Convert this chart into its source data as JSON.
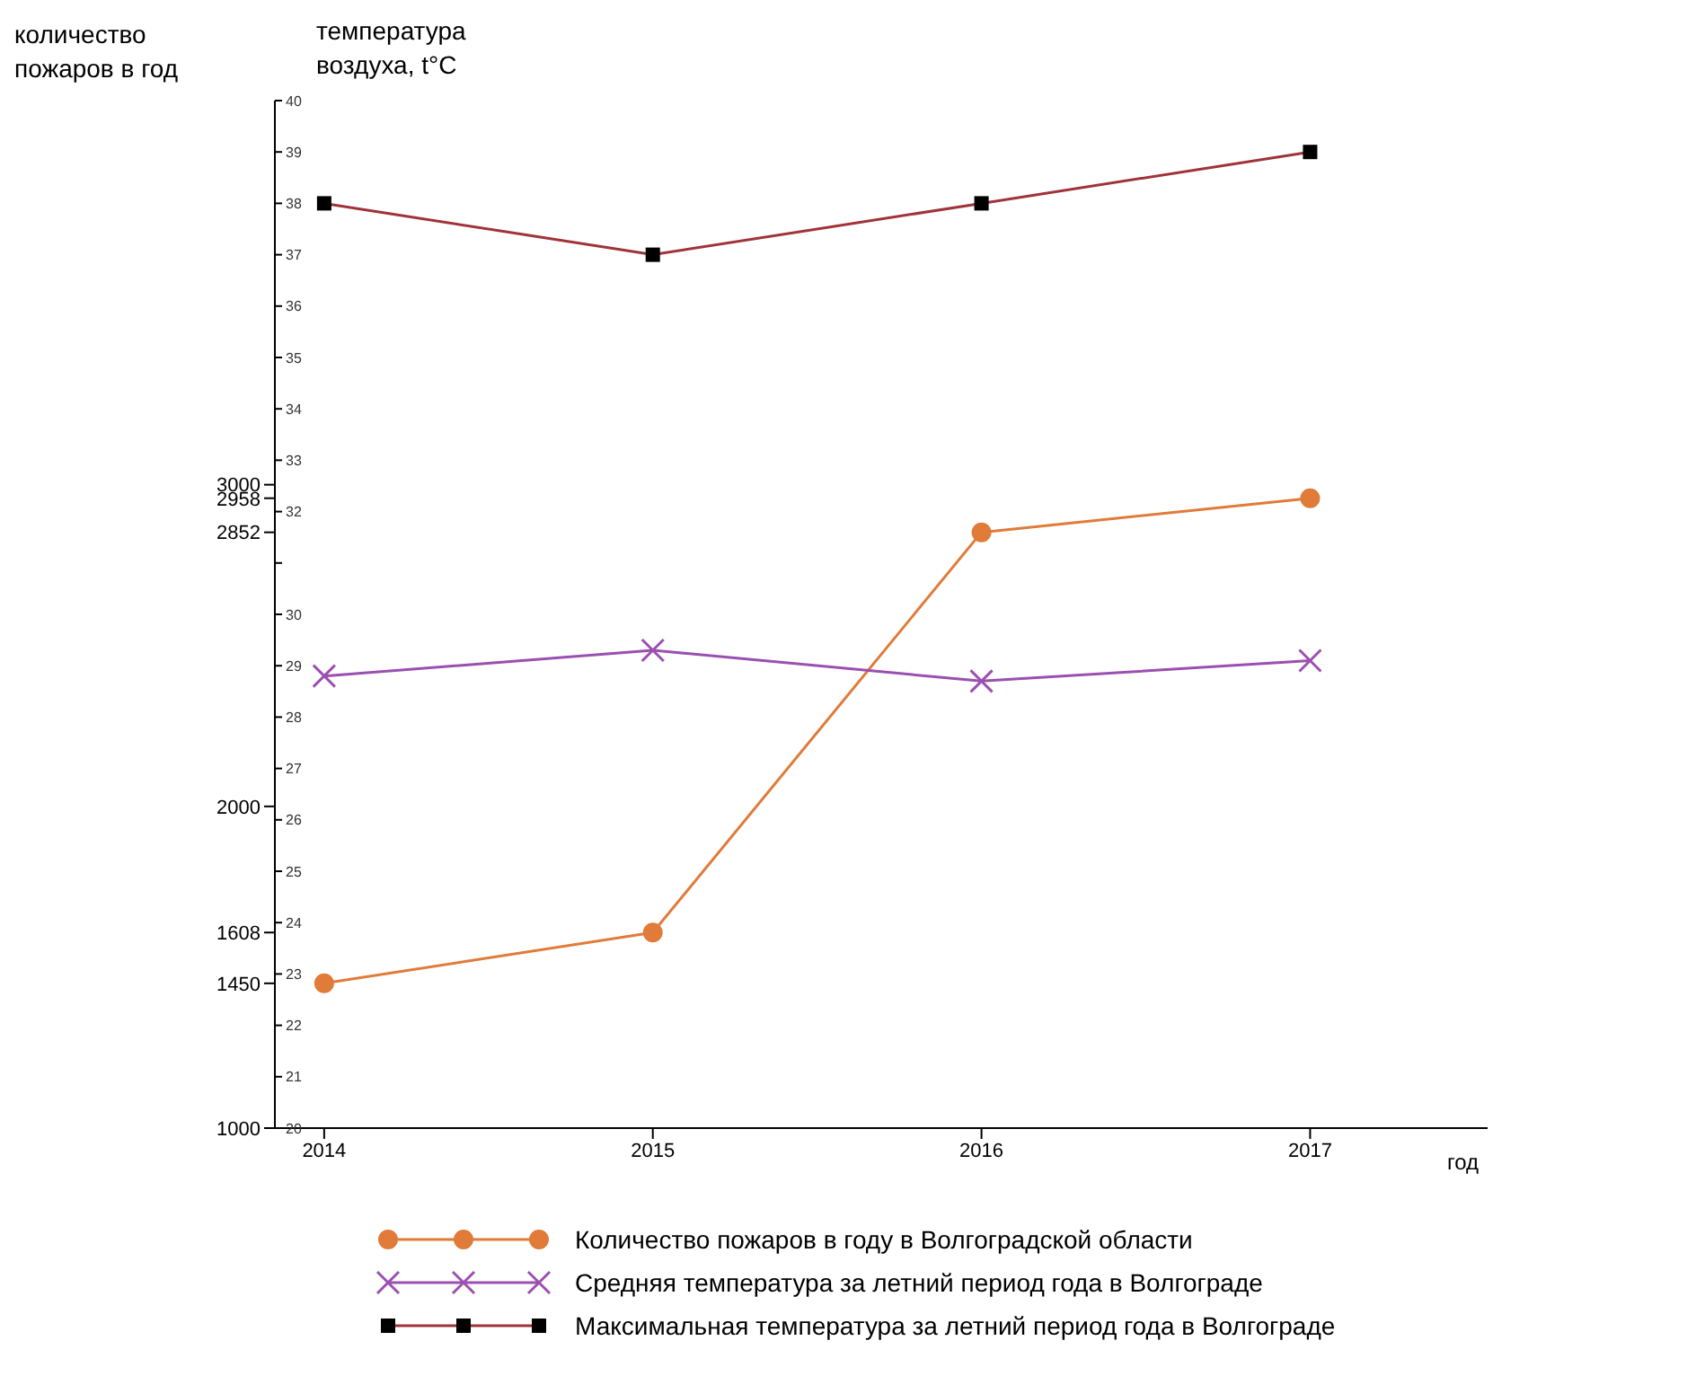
{
  "chart_data": {
    "type": "line",
    "xlabel": "год",
    "ylabel": "количество пожаров в год",
    "y2label": "температура воздуха, t°C",
    "categories": [
      "2014",
      "2015",
      "2016",
      "2017"
    ],
    "series": [
      {
        "name": "Количество пожаров в году в Волгоградской области",
        "color": "#e07b39",
        "marker": "circle",
        "values": [
          1450,
          1608,
          2852,
          2958
        ]
      },
      {
        "name": "Средняя температура за летний период года в Волгограде",
        "color": "#9b4fb0",
        "marker": "cross",
        "axis": "y2",
        "values": [
          28.8,
          29.3,
          28.7,
          29.1
        ]
      },
      {
        "name": "Максимальная температура за летний период года в Волгограде",
        "color": "#a0333a",
        "marker": "square",
        "axis": "y2",
        "values": [
          38,
          37,
          38,
          39
        ]
      }
    ],
    "ylim": [
      1000,
      4194
    ],
    "yticks": [
      1000,
      1450,
      1608,
      2000,
      2852,
      2958,
      3000
    ],
    "y2lim": [
      20,
      40
    ],
    "y2ticks": [
      20,
      21,
      22,
      23,
      24,
      25,
      26,
      27,
      28,
      29,
      30,
      {
        "value": 31,
        "label": null
      },
      32,
      33,
      34,
      35,
      36,
      37,
      38,
      39,
      40
    ],
    "legend": "bottom",
    "line_style": "solid"
  }
}
